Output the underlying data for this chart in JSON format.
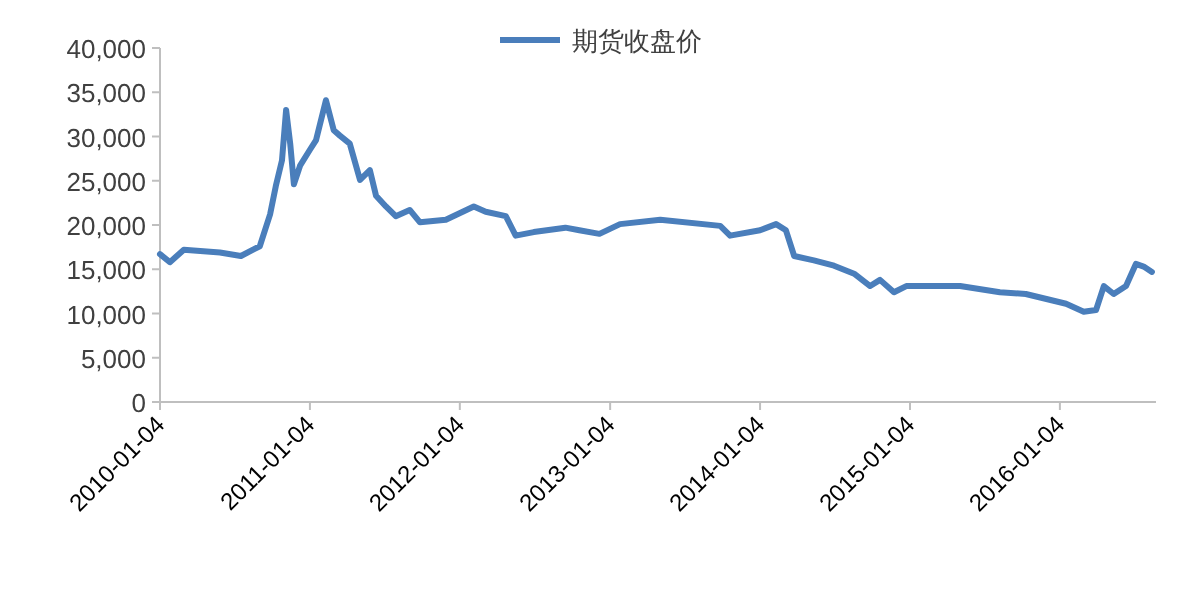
{
  "chart_data": {
    "type": "line",
    "x": [
      "2010-01-04",
      "2010-01-28",
      "2010-03-03",
      "2010-05-30",
      "2010-07-20",
      "2010-09-04",
      "2010-09-29",
      "2010-10-13",
      "2010-10-28",
      "2010-11-07",
      "2010-11-17",
      "2010-11-26",
      "2010-12-11",
      "2011-01-04",
      "2011-01-19",
      "2011-02-12",
      "2011-03-03",
      "2011-03-18",
      "2011-04-11",
      "2011-05-06",
      "2011-05-30",
      "2011-06-14",
      "2011-07-08",
      "2011-08-01",
      "2011-09-04",
      "2011-09-29",
      "2011-12-01",
      "2012-02-07",
      "2012-03-07",
      "2012-04-25",
      "2012-05-19",
      "2012-07-02",
      "2012-09-17",
      "2012-10-21",
      "2012-12-09",
      "2013-01-28",
      "2013-05-06",
      "2013-09-29",
      "2013-10-23",
      "2014-01-04",
      "2014-02-12",
      "2014-03-08",
      "2014-03-28",
      "2014-05-15",
      "2014-07-03",
      "2014-08-21",
      "2014-09-29",
      "2014-10-23",
      "2014-11-26",
      "2014-12-26",
      "2015-05-06",
      "2015-08-11",
      "2015-10-13",
      "2016-01-19",
      "2016-03-02",
      "2016-04-01",
      "2016-04-20",
      "2016-05-14",
      "2016-06-13",
      "2016-07-07",
      "2016-07-26",
      "2016-08-15"
    ],
    "series": [
      {
        "name": "期货收盘价",
        "color": "#4a7ebb",
        "values": [
          16700,
          15800,
          17200,
          16900,
          16500,
          17600,
          21200,
          24400,
          27300,
          33000,
          29200,
          24600,
          26700,
          28500,
          29600,
          34100,
          30700,
          30100,
          29200,
          25100,
          26200,
          23300,
          22100,
          21000,
          21700,
          20300,
          20600,
          22100,
          21500,
          21000,
          18800,
          19200,
          19700,
          19400,
          19000,
          20100,
          20600,
          19900,
          18800,
          19400,
          20100,
          19400,
          16500,
          16000,
          15400,
          14500,
          13100,
          13800,
          12400,
          13100,
          13100,
          12400,
          12200,
          11100,
          10200,
          10400,
          13100,
          12200,
          13100,
          15600,
          15300,
          14700
        ]
      }
    ],
    "xlim": [
      "2010-01-04",
      "2016-08-25"
    ],
    "xticks": [
      "2010-01-04",
      "2011-01-04",
      "2012-01-04",
      "2013-01-04",
      "2014-01-04",
      "2015-01-04",
      "2016-01-04"
    ],
    "ylim": [
      0,
      40000
    ],
    "yticks": [
      {
        "value": 0,
        "label": "0"
      },
      {
        "value": 5000,
        "label": "5,000"
      },
      {
        "value": 10000,
        "label": "10,000"
      },
      {
        "value": 15000,
        "label": "15,000"
      },
      {
        "value": 20000,
        "label": "20,000"
      },
      {
        "value": 25000,
        "label": "25,000"
      },
      {
        "value": 30000,
        "label": "30,000"
      },
      {
        "value": 35000,
        "label": "35,000"
      },
      {
        "value": 40000,
        "label": "40,000"
      }
    ],
    "legend": "top"
  }
}
